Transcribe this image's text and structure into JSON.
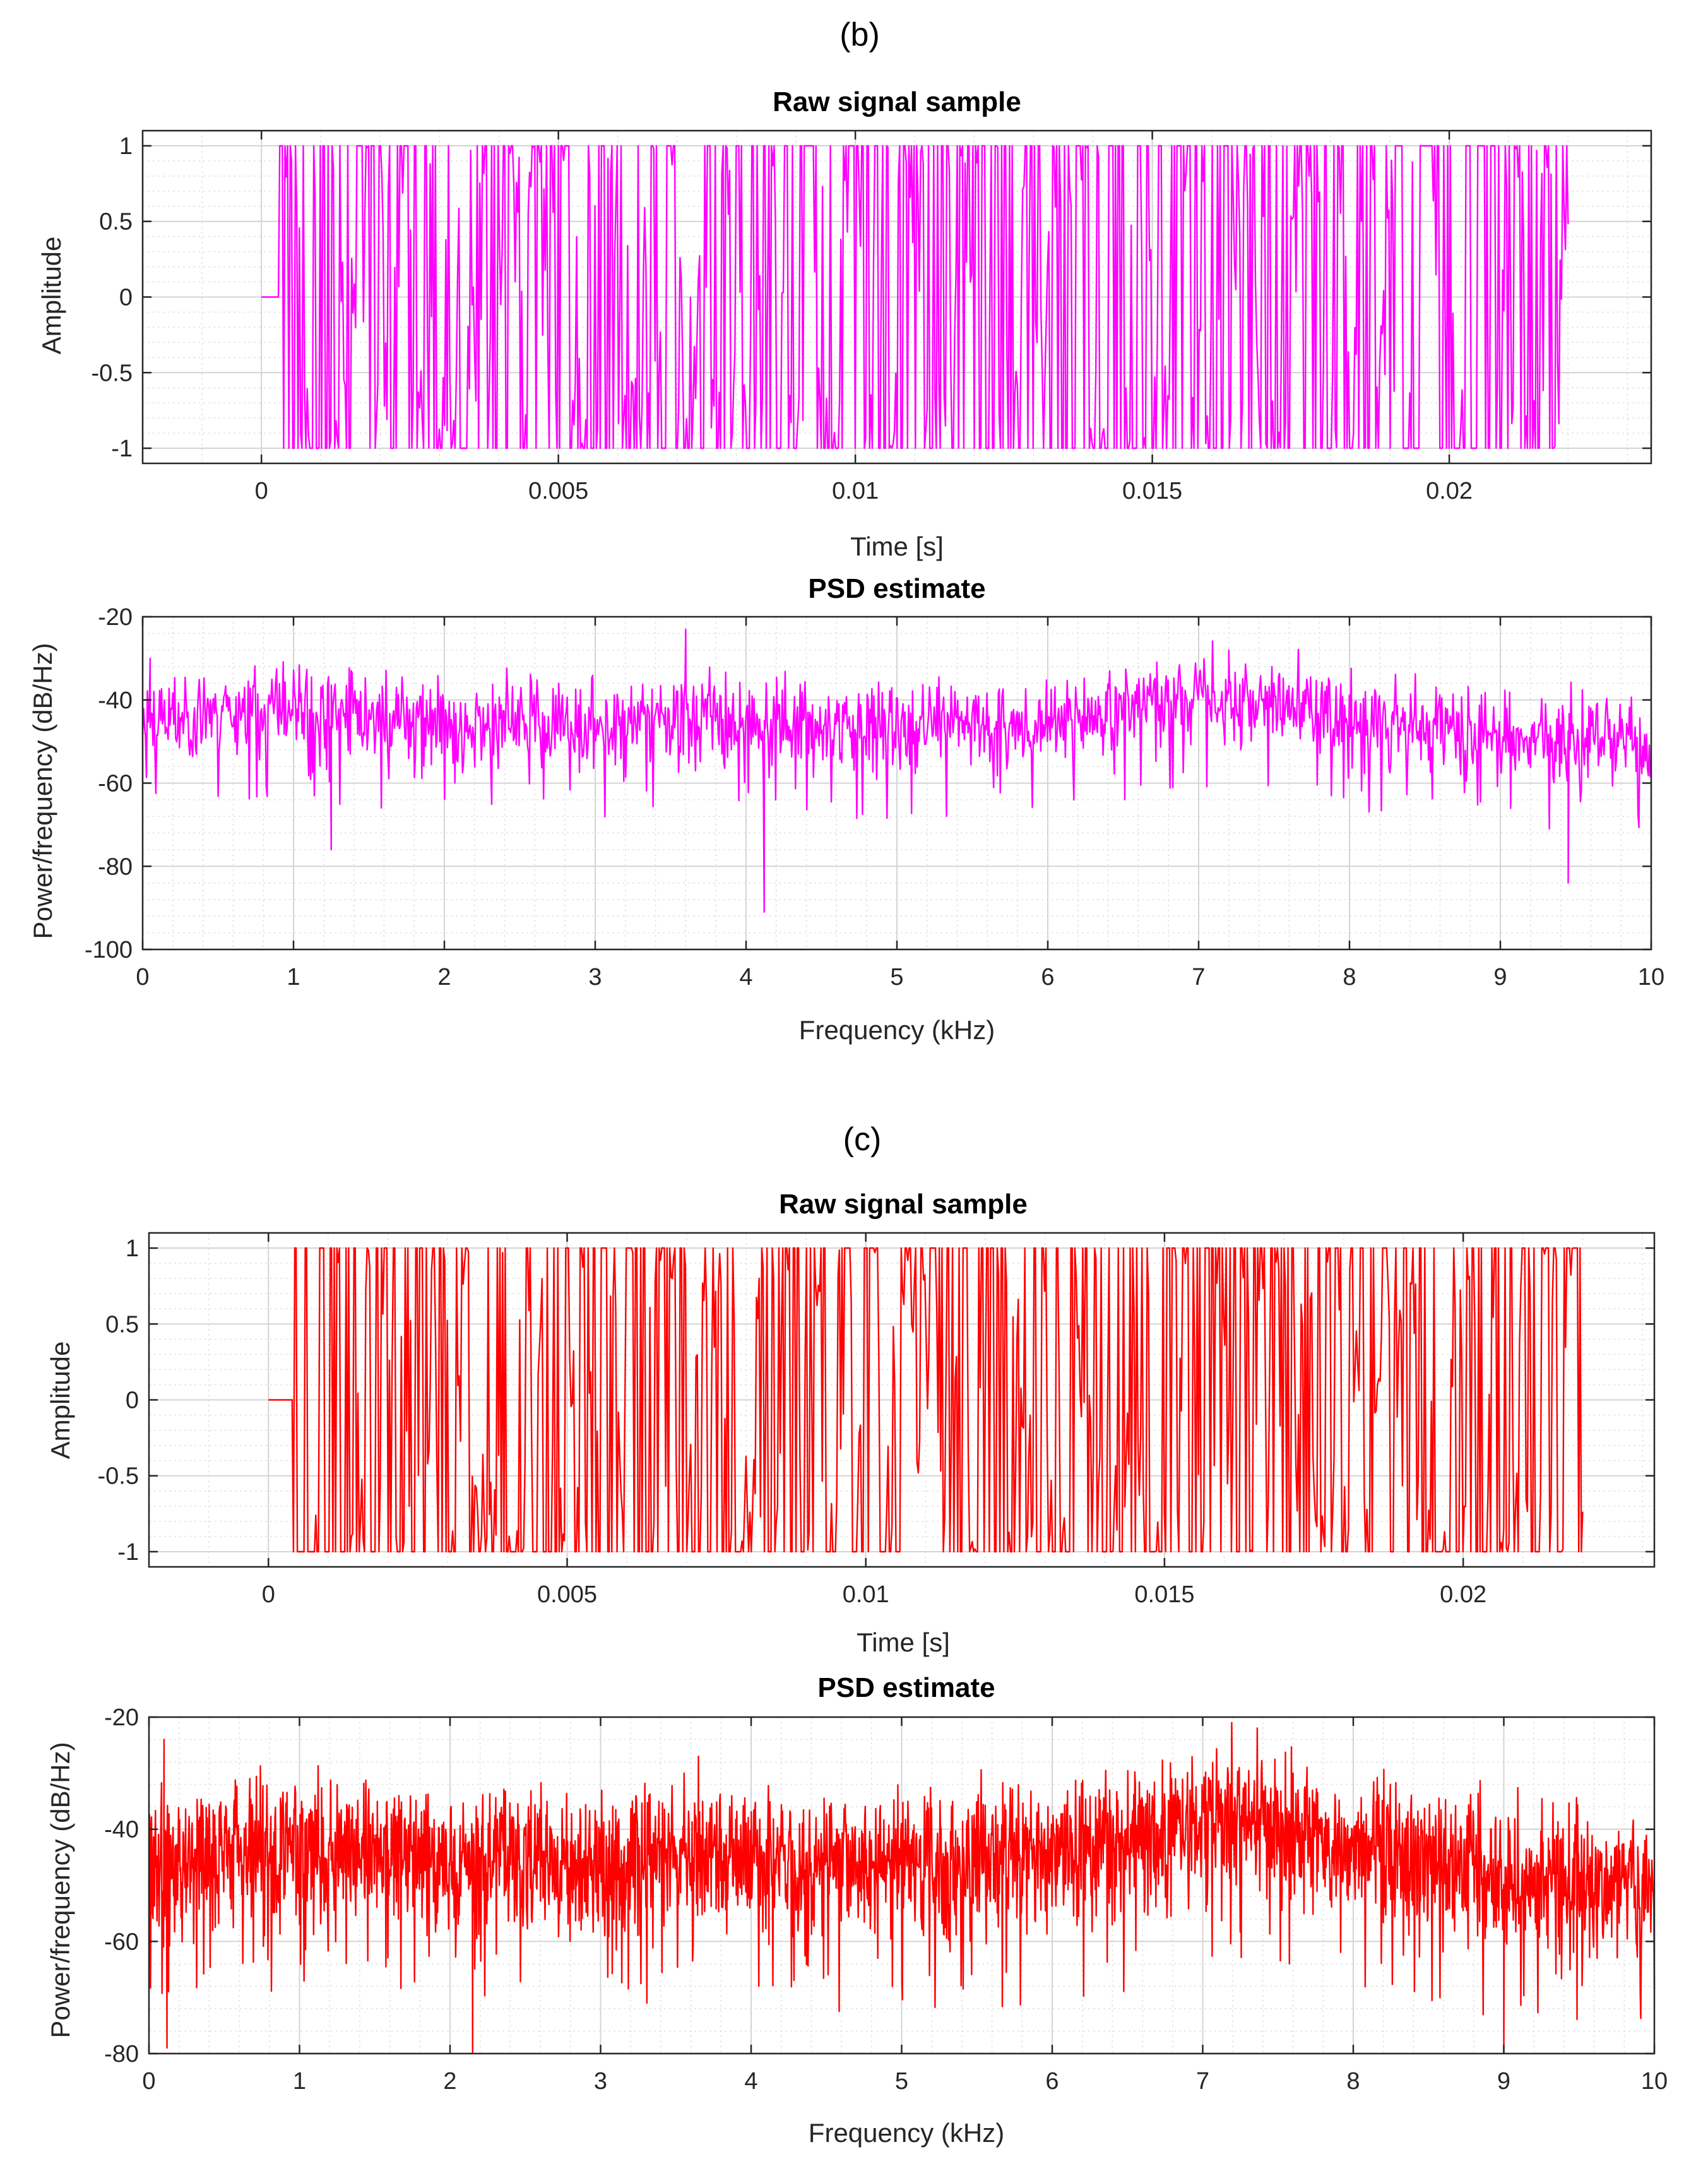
{
  "panels": [
    {
      "label": "(b)"
    },
    {
      "label": "(c)"
    }
  ],
  "chart_data": [
    {
      "type": "line",
      "panel": "(b)",
      "title": "Raw signal sample",
      "xlabel": "Time [s]",
      "ylabel": "Amplitude",
      "xlim": [
        -0.002,
        0.0234
      ],
      "ylim": [
        -1.1,
        1.1
      ],
      "xticks": [
        0,
        0.005,
        0.01,
        0.015,
        0.02
      ],
      "xtick_labels": [
        "0",
        "0.005",
        "0.01",
        "0.015",
        "0.02"
      ],
      "yticks": [
        -1,
        -0.5,
        0,
        0.5,
        1
      ],
      "ytick_labels": [
        "-1",
        "-0.5",
        "0",
        "0.5",
        "1"
      ],
      "grid": true,
      "minor_grid": true,
      "color": "#ff00ff",
      "signal": {
        "t_start": 0.0,
        "t_end": 0.022,
        "samples": 1000,
        "silent_until": 0.0003,
        "seed": 11
      }
    },
    {
      "type": "line",
      "panel": "(b)",
      "title": "PSD estimate",
      "xlabel": "Frequency (kHz)",
      "ylabel": "Power/frequency (dB/Hz)",
      "xlim": [
        0,
        10
      ],
      "ylim": [
        -100,
        -20
      ],
      "xticks": [
        0,
        1,
        2,
        3,
        4,
        5,
        6,
        7,
        8,
        9,
        10
      ],
      "xtick_labels": [
        "0",
        "1",
        "2",
        "3",
        "4",
        "5",
        "6",
        "7",
        "8",
        "9",
        "10"
      ],
      "yticks": [
        -100,
        -80,
        -60,
        -40,
        -20
      ],
      "ytick_labels": [
        "-100",
        "-80",
        "-60",
        "-40",
        "-20"
      ],
      "grid": true,
      "minor_grid": true,
      "color": "#ff00ff",
      "trend": {
        "freq_khz": [
          0,
          0.5,
          1,
          2,
          3,
          3.6,
          4,
          4.5,
          5,
          6,
          6.5,
          7,
          7.5,
          8,
          9,
          10
        ],
        "level_db": [
          -45,
          -42,
          -42,
          -45,
          -46,
          -44,
          -44,
          -46,
          -46,
          -45,
          -42,
          -39,
          -40,
          -44,
          -48,
          -51
        ]
      },
      "noise_db": 5,
      "points": 1600,
      "seed": 23,
      "notable_peaks_khz_db": [
        [
          3.6,
          -23
        ],
        [
          0.05,
          -30
        ],
        [
          7.2,
          -28
        ]
      ],
      "notable_dips_khz_db": [
        [
          4.12,
          -91
        ],
        [
          9.45,
          -84
        ],
        [
          1.25,
          -76
        ]
      ]
    },
    {
      "type": "line",
      "panel": "(c)",
      "title": "Raw signal sample",
      "xlabel": "Time [s]",
      "ylabel": "Amplitude",
      "xlim": [
        -0.002,
        0.0232
      ],
      "ylim": [
        -1.1,
        1.1
      ],
      "xticks": [
        0,
        0.005,
        0.01,
        0.015,
        0.02
      ],
      "xtick_labels": [
        "0",
        "0.005",
        "0.01",
        "0.015",
        "0.02"
      ],
      "yticks": [
        -1,
        -0.5,
        0,
        0.5,
        1
      ],
      "ytick_labels": [
        "-1",
        "-0.5",
        "0",
        "0.5",
        "1"
      ],
      "grid": true,
      "minor_grid": true,
      "color": "#ff0000",
      "signal": {
        "t_start": 0.0,
        "t_end": 0.022,
        "samples": 1000,
        "silent_until": 0.0004,
        "seed": 37
      }
    },
    {
      "type": "line",
      "panel": "(c)",
      "title": "PSD estimate",
      "xlabel": "Frequency (kHz)",
      "ylabel": "Power/frequency (dB/Hz)",
      "xlim": [
        0,
        10
      ],
      "ylim": [
        -80,
        -20
      ],
      "xticks": [
        0,
        1,
        2,
        3,
        4,
        5,
        6,
        7,
        8,
        9,
        10
      ],
      "xtick_labels": [
        "0",
        "1",
        "2",
        "3",
        "4",
        "5",
        "6",
        "7",
        "8",
        "9",
        "10"
      ],
      "yticks": [
        -80,
        -60,
        -40,
        -20
      ],
      "ytick_labels": [
        "-80",
        "-60",
        "-40",
        "-20"
      ],
      "grid": true,
      "minor_grid": true,
      "color": "#ff0000",
      "trend": {
        "freq_khz": [
          0,
          0.5,
          1,
          2,
          3,
          3.6,
          4,
          4.5,
          5,
          6,
          6.5,
          7,
          7.5,
          8,
          9,
          10
        ],
        "level_db": [
          -46,
          -42,
          -42,
          -45,
          -46,
          -43,
          -45,
          -46,
          -46,
          -45,
          -42,
          -38,
          -38,
          -43,
          -48,
          -51
        ]
      },
      "noise_db": 6,
      "points": 3000,
      "seed": 59,
      "notable_peaks_khz_db": [
        [
          0.1,
          -24
        ],
        [
          3.65,
          -27
        ],
        [
          7.6,
          -30
        ]
      ],
      "notable_dips_khz_db": [
        [
          2.15,
          -80
        ],
        [
          0.12,
          -79
        ],
        [
          9.0,
          -80
        ]
      ]
    }
  ]
}
